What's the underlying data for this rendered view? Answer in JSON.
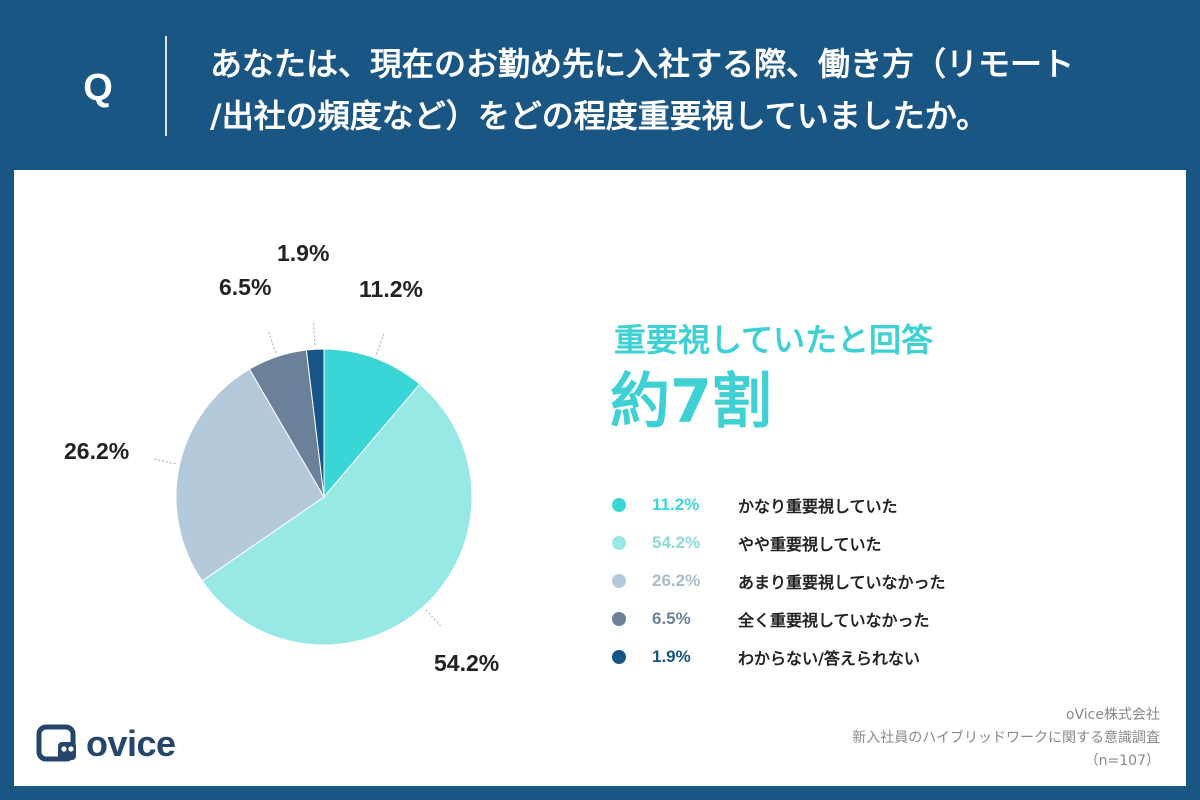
{
  "question": {
    "mark": "Q",
    "line1": "あなたは、現在のお勤め先に入社する際、働き方（リモート",
    "line2": "/出社の頻度など）をどの程度重要視していましたか。"
  },
  "headline": {
    "sub": "重要視していたと回答",
    "main": "約7割"
  },
  "chart_data": {
    "type": "pie",
    "title": "あなたは、現在のお勤め先に入社する際、働き方（リモート/出社の頻度など）をどの程度重要視していましたか。",
    "categories": [
      "かなり重要視していた",
      "やや重要視していた",
      "あまり重要視していなかった",
      "全く重要視していなかった",
      "わからない/答えられない"
    ],
    "values": [
      11.2,
      54.2,
      26.2,
      6.5,
      1.9
    ],
    "value_labels": [
      "11.2%",
      "54.2%",
      "26.2%",
      "6.5%",
      "1.9%"
    ],
    "colors": [
      "#3ad6d6",
      "#98e8e6",
      "#b4c9da",
      "#6b8199",
      "#175585"
    ],
    "start": "12 o'clock, clockwise",
    "legend_position": "right"
  },
  "source": {
    "company": "oVice株式会社",
    "survey": "新入社員のハイブリッドワークに関する意識調査",
    "sample": "（n=107）"
  },
  "logo": {
    "name": "ovice",
    "icon": "ovice-logo-icon"
  }
}
